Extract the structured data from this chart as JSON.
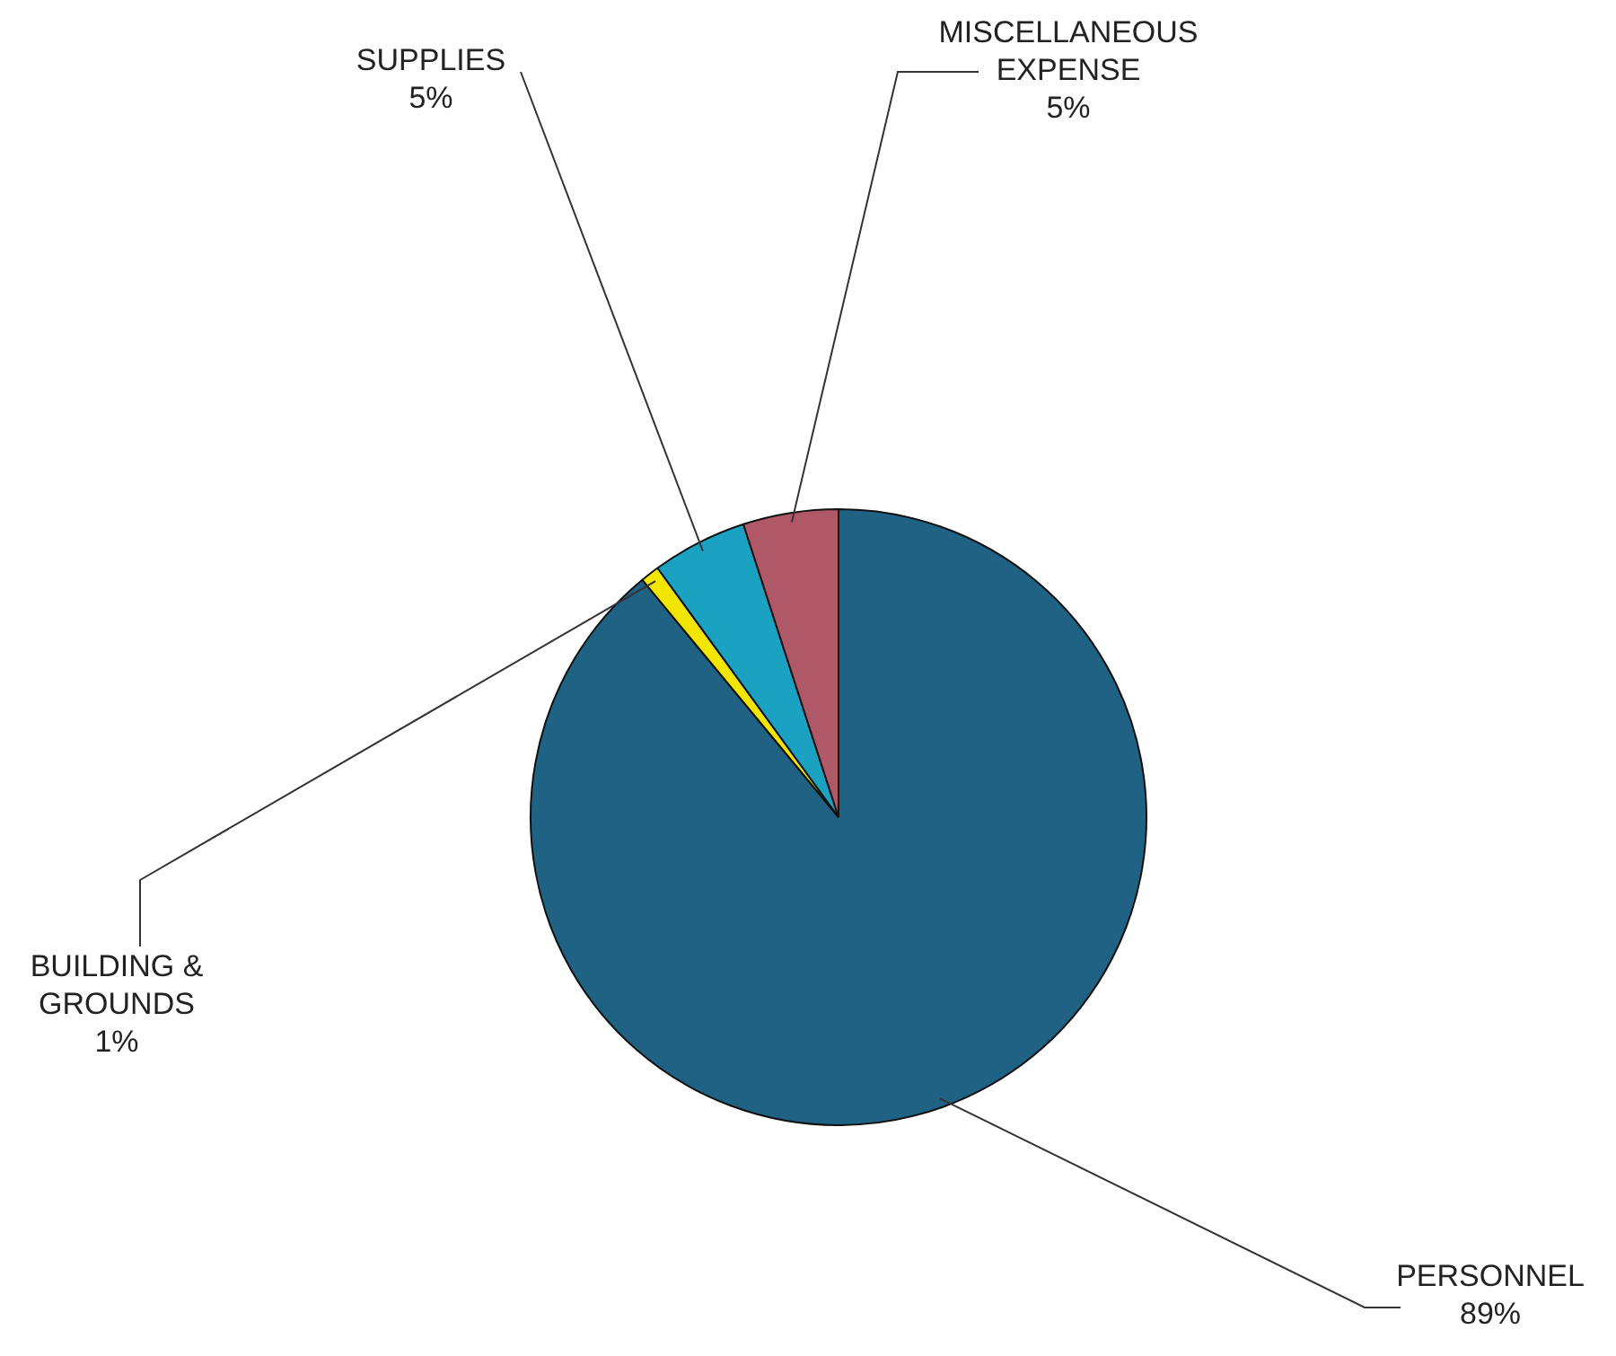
{
  "chart_data": {
    "type": "pie",
    "categories": [
      "PERSONNEL",
      "BUILDING & GROUNDS",
      "SUPPLIES",
      "MISCELLANEOUS EXPENSE"
    ],
    "values": [
      89,
      1,
      5,
      5
    ],
    "value_labels": [
      "89%",
      "1%",
      "5%",
      "5%"
    ],
    "colors": [
      "#1f6283",
      "#f2e600",
      "#1ba2c2",
      "#b05868"
    ],
    "legend": false
  }
}
